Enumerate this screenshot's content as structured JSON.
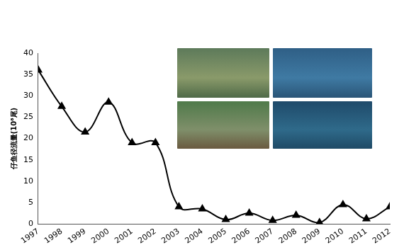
{
  "chart_data": {
    "type": "line",
    "y_label": "仔鱼径流量(10⁸尾)",
    "categories": [
      "1997",
      "1998",
      "1999",
      "2000",
      "2001",
      "2002",
      "2003",
      "2004",
      "2005",
      "2006",
      "2007",
      "2008",
      "2009",
      "2010",
      "2011",
      "2012"
    ],
    "values": [
      36,
      27.5,
      21.5,
      28.5,
      19,
      19,
      4,
      3.5,
      1,
      2.5,
      0.8,
      2,
      0.3,
      4.5,
      1.2,
      4
    ],
    "color": "#000000",
    "marker": "triangle",
    "ylim": [
      0,
      40
    ],
    "yticks": [
      0,
      5,
      10,
      15,
      20,
      25,
      30,
      35,
      40
    ],
    "grid": false
  }
}
